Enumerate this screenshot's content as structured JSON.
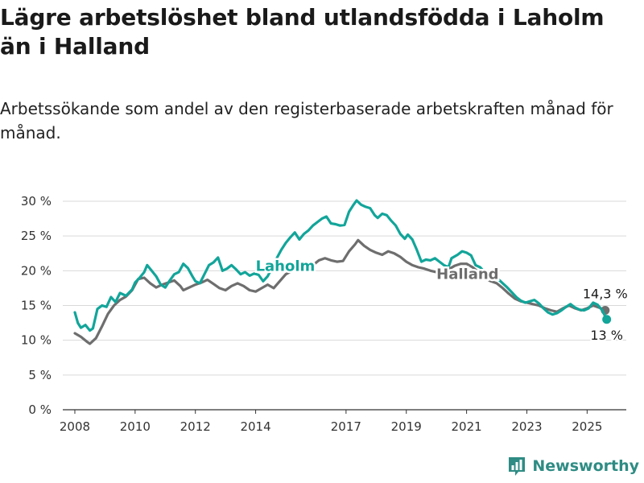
{
  "title": "Lägre arbetslöshet bland utlandsfödda i Laholm än i Halland",
  "subtitle": "Arbetssökande som andel av den registerbaserade arbetskraften månad för månad.",
  "brand": {
    "name": "Newsworthy"
  },
  "colors": {
    "laholm": "#12a59a",
    "halland": "#6e6e6e",
    "grid": "#d9d9d9",
    "axis": "#333333"
  },
  "chart_data": {
    "type": "line",
    "xlim": [
      2007.6,
      2026.3
    ],
    "ylim": [
      0,
      30
    ],
    "grid": true,
    "xticks": [
      2008,
      2010,
      2012,
      2014,
      2017,
      2019,
      2021,
      2023,
      2025
    ],
    "xtick_labels": [
      "2008",
      "2010",
      "2012",
      "2014",
      "2017",
      "2019",
      "2021",
      "2023",
      "2025"
    ],
    "yticks": [
      0,
      5,
      10,
      15,
      20,
      25,
      30
    ],
    "ytick_labels": [
      "0 %",
      "5 %",
      "10 %",
      "15 %",
      "20 %",
      "25 %",
      "30 %"
    ],
    "series": [
      {
        "name": "Halland",
        "color": "#6e6e6e",
        "end_label": "14,3 %",
        "points": [
          [
            2008.0,
            11.0
          ],
          [
            2008.2,
            10.5
          ],
          [
            2008.4,
            9.8
          ],
          [
            2008.5,
            9.5
          ],
          [
            2008.7,
            10.3
          ],
          [
            2008.9,
            12.0
          ],
          [
            2009.1,
            13.8
          ],
          [
            2009.3,
            15.0
          ],
          [
            2009.5,
            15.8
          ],
          [
            2009.7,
            16.3
          ],
          [
            2009.9,
            17.2
          ],
          [
            2010.0,
            18.0
          ],
          [
            2010.1,
            18.8
          ],
          [
            2010.3,
            19.0
          ],
          [
            2010.5,
            18.2
          ],
          [
            2010.7,
            17.6
          ],
          [
            2010.9,
            18.0
          ],
          [
            2011.1,
            18.3
          ],
          [
            2011.3,
            18.6
          ],
          [
            2011.5,
            17.8
          ],
          [
            2011.6,
            17.2
          ],
          [
            2011.8,
            17.6
          ],
          [
            2012.0,
            18.0
          ],
          [
            2012.2,
            18.3
          ],
          [
            2012.4,
            18.7
          ],
          [
            2012.6,
            18.1
          ],
          [
            2012.8,
            17.5
          ],
          [
            2013.0,
            17.2
          ],
          [
            2013.2,
            17.8
          ],
          [
            2013.4,
            18.2
          ],
          [
            2013.6,
            17.8
          ],
          [
            2013.8,
            17.2
          ],
          [
            2014.0,
            17.0
          ],
          [
            2014.2,
            17.5
          ],
          [
            2014.4,
            18.0
          ],
          [
            2014.6,
            17.5
          ],
          [
            2014.8,
            18.5
          ],
          [
            2015.0,
            19.5
          ],
          [
            2015.3,
            20.2
          ],
          [
            2015.6,
            20.4
          ],
          [
            2015.9,
            20.8
          ],
          [
            2016.1,
            21.5
          ],
          [
            2016.3,
            21.8
          ],
          [
            2016.5,
            21.5
          ],
          [
            2016.7,
            21.3
          ],
          [
            2016.9,
            21.4
          ],
          [
            2017.1,
            22.8
          ],
          [
            2017.3,
            23.8
          ],
          [
            2017.4,
            24.4
          ],
          [
            2017.6,
            23.6
          ],
          [
            2017.8,
            23.0
          ],
          [
            2018.0,
            22.6
          ],
          [
            2018.2,
            22.3
          ],
          [
            2018.4,
            22.8
          ],
          [
            2018.6,
            22.5
          ],
          [
            2018.8,
            22.0
          ],
          [
            2019.0,
            21.3
          ],
          [
            2019.2,
            20.8
          ],
          [
            2019.4,
            20.5
          ],
          [
            2019.6,
            20.3
          ],
          [
            2019.8,
            20.0
          ],
          [
            2020.0,
            19.8
          ],
          [
            2020.2,
            19.9
          ],
          [
            2020.4,
            20.2
          ],
          [
            2020.6,
            20.7
          ],
          [
            2020.8,
            21.0
          ],
          [
            2021.0,
            21.0
          ],
          [
            2021.2,
            20.5
          ],
          [
            2021.4,
            19.8
          ],
          [
            2021.6,
            19.0
          ],
          [
            2021.8,
            18.5
          ],
          [
            2022.0,
            18.2
          ],
          [
            2022.2,
            17.5
          ],
          [
            2022.4,
            16.7
          ],
          [
            2022.6,
            16.0
          ],
          [
            2022.8,
            15.6
          ],
          [
            2023.0,
            15.4
          ],
          [
            2023.2,
            15.2
          ],
          [
            2023.4,
            15.0
          ],
          [
            2023.6,
            14.6
          ],
          [
            2023.8,
            14.3
          ],
          [
            2024.0,
            14.1
          ],
          [
            2024.2,
            14.6
          ],
          [
            2024.4,
            15.0
          ],
          [
            2024.6,
            14.6
          ],
          [
            2024.8,
            14.3
          ],
          [
            2025.0,
            14.6
          ],
          [
            2025.2,
            15.0
          ],
          [
            2025.4,
            14.7
          ],
          [
            2025.6,
            14.3
          ]
        ]
      },
      {
        "name": "Laholm",
        "color": "#12a59a",
        "end_label": "13 %",
        "points": [
          [
            2008.0,
            14.0
          ],
          [
            2008.1,
            12.5
          ],
          [
            2008.2,
            11.8
          ],
          [
            2008.35,
            12.2
          ],
          [
            2008.5,
            11.4
          ],
          [
            2008.6,
            11.7
          ],
          [
            2008.75,
            14.5
          ],
          [
            2008.9,
            15.0
          ],
          [
            2009.05,
            14.8
          ],
          [
            2009.2,
            16.2
          ],
          [
            2009.35,
            15.5
          ],
          [
            2009.5,
            16.8
          ],
          [
            2009.7,
            16.4
          ],
          [
            2009.9,
            17.3
          ],
          [
            2010.0,
            18.3
          ],
          [
            2010.15,
            19.0
          ],
          [
            2010.3,
            19.8
          ],
          [
            2010.4,
            20.8
          ],
          [
            2010.55,
            20.0
          ],
          [
            2010.7,
            19.2
          ],
          [
            2010.85,
            18.0
          ],
          [
            2011.0,
            17.6
          ],
          [
            2011.15,
            18.6
          ],
          [
            2011.3,
            19.5
          ],
          [
            2011.45,
            19.8
          ],
          [
            2011.6,
            21.0
          ],
          [
            2011.75,
            20.4
          ],
          [
            2011.9,
            19.2
          ],
          [
            2012.0,
            18.5
          ],
          [
            2012.15,
            18.2
          ],
          [
            2012.3,
            19.5
          ],
          [
            2012.45,
            20.8
          ],
          [
            2012.6,
            21.2
          ],
          [
            2012.75,
            21.9
          ],
          [
            2012.9,
            20.0
          ],
          [
            2013.05,
            20.3
          ],
          [
            2013.2,
            20.8
          ],
          [
            2013.35,
            20.2
          ],
          [
            2013.5,
            19.5
          ],
          [
            2013.65,
            19.8
          ],
          [
            2013.8,
            19.3
          ],
          [
            2013.95,
            19.6
          ],
          [
            2014.1,
            19.4
          ],
          [
            2014.25,
            18.5
          ],
          [
            2014.4,
            19.2
          ],
          [
            2014.55,
            20.5
          ],
          [
            2014.7,
            21.8
          ],
          [
            2014.85,
            23.0
          ],
          [
            2015.0,
            24.0
          ],
          [
            2015.15,
            24.8
          ],
          [
            2015.3,
            25.5
          ],
          [
            2015.45,
            24.5
          ],
          [
            2015.6,
            25.3
          ],
          [
            2015.75,
            25.8
          ],
          [
            2015.9,
            26.5
          ],
          [
            2016.05,
            27.0
          ],
          [
            2016.2,
            27.5
          ],
          [
            2016.35,
            27.8
          ],
          [
            2016.5,
            26.8
          ],
          [
            2016.65,
            26.7
          ],
          [
            2016.8,
            26.5
          ],
          [
            2016.95,
            26.6
          ],
          [
            2017.1,
            28.5
          ],
          [
            2017.25,
            29.5
          ],
          [
            2017.35,
            30.1
          ],
          [
            2017.5,
            29.5
          ],
          [
            2017.65,
            29.2
          ],
          [
            2017.8,
            29.0
          ],
          [
            2017.95,
            28.0
          ],
          [
            2018.05,
            27.6
          ],
          [
            2018.2,
            28.2
          ],
          [
            2018.35,
            28.0
          ],
          [
            2018.5,
            27.2
          ],
          [
            2018.65,
            26.5
          ],
          [
            2018.8,
            25.3
          ],
          [
            2018.95,
            24.6
          ],
          [
            2019.05,
            25.2
          ],
          [
            2019.2,
            24.5
          ],
          [
            2019.35,
            23.0
          ],
          [
            2019.5,
            21.3
          ],
          [
            2019.65,
            21.6
          ],
          [
            2019.8,
            21.5
          ],
          [
            2019.95,
            21.8
          ],
          [
            2020.1,
            21.3
          ],
          [
            2020.25,
            20.8
          ],
          [
            2020.4,
            20.5
          ],
          [
            2020.5,
            21.8
          ],
          [
            2020.7,
            22.3
          ],
          [
            2020.85,
            22.8
          ],
          [
            2021.0,
            22.6
          ],
          [
            2021.15,
            22.2
          ],
          [
            2021.3,
            20.8
          ],
          [
            2021.45,
            20.5
          ],
          [
            2021.6,
            19.8
          ],
          [
            2021.75,
            19.3
          ],
          [
            2021.9,
            19.0
          ],
          [
            2022.05,
            18.8
          ],
          [
            2022.2,
            18.2
          ],
          [
            2022.35,
            17.6
          ],
          [
            2022.5,
            16.9
          ],
          [
            2022.65,
            16.2
          ],
          [
            2022.8,
            15.7
          ],
          [
            2022.95,
            15.4
          ],
          [
            2023.1,
            15.6
          ],
          [
            2023.25,
            15.8
          ],
          [
            2023.4,
            15.3
          ],
          [
            2023.55,
            14.6
          ],
          [
            2023.7,
            14.0
          ],
          [
            2023.85,
            13.7
          ],
          [
            2024.0,
            13.9
          ],
          [
            2024.15,
            14.3
          ],
          [
            2024.3,
            14.8
          ],
          [
            2024.45,
            15.2
          ],
          [
            2024.6,
            14.7
          ],
          [
            2024.75,
            14.4
          ],
          [
            2024.9,
            14.3
          ],
          [
            2025.05,
            14.6
          ],
          [
            2025.2,
            15.4
          ],
          [
            2025.35,
            15.1
          ],
          [
            2025.5,
            14.3
          ],
          [
            2025.65,
            13.0
          ]
        ]
      }
    ],
    "labels": [
      {
        "text": "Laholm",
        "series": "Laholm",
        "x": 2014.0,
        "y": 20.0
      },
      {
        "text": "Halland",
        "series": "Halland",
        "x": 2020.0,
        "y": 18.8
      }
    ]
  }
}
